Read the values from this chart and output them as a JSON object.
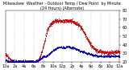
{
  "background_color": "#ffffff",
  "plot_bg_color": "#ffffff",
  "grid_color": "#aaaaaa",
  "temp_color": "#cc0000",
  "dew_color": "#0000cc",
  "ylim": [
    20,
    80
  ],
  "xlim": [
    0,
    1439
  ],
  "temp_data": [
    30,
    29,
    28,
    27,
    27,
    26,
    25,
    25,
    24,
    24,
    23,
    23,
    23,
    22,
    22,
    22,
    22,
    21,
    21,
    21,
    21,
    21,
    21,
    20,
    20,
    20,
    20,
    20,
    20,
    20,
    20,
    20,
    20,
    20,
    20,
    20,
    20,
    20,
    20,
    20,
    20,
    20,
    20,
    20,
    20,
    20,
    20,
    20,
    20,
    20,
    20,
    20,
    20,
    20,
    20,
    20,
    20,
    20,
    20,
    20,
    20,
    20,
    20,
    20,
    20,
    21,
    21,
    22,
    22,
    23,
    24,
    25,
    26,
    27,
    28,
    30,
    32,
    34,
    36,
    38,
    40,
    42,
    44,
    47,
    49,
    52,
    54,
    56,
    58,
    59,
    60,
    61,
    62,
    63,
    64,
    64,
    65,
    65,
    66,
    66,
    67,
    67,
    67,
    68,
    68,
    68,
    68,
    68,
    68,
    68,
    68,
    68,
    68,
    68,
    68,
    68,
    68,
    68,
    68,
    68,
    68,
    68,
    68,
    68,
    68,
    68,
    68,
    68,
    68,
    68,
    68,
    68,
    68,
    68,
    68,
    68,
    68,
    68,
    68,
    68,
    67,
    67,
    67,
    67,
    67,
    66,
    66,
    66,
    65,
    65,
    65,
    64,
    64,
    63,
    63,
    62,
    62,
    61,
    61,
    60,
    59,
    58,
    57,
    56,
    55,
    54,
    53,
    52,
    51,
    50,
    49,
    48,
    47,
    46,
    45,
    44,
    43,
    42,
    41,
    40,
    39,
    38,
    38,
    37,
    37,
    36,
    36,
    35,
    35,
    34,
    34,
    34,
    33,
    33,
    33,
    33,
    33,
    33,
    33,
    33,
    32,
    32,
    32,
    32,
    32,
    32,
    31,
    31,
    31,
    31,
    31,
    31,
    31,
    31,
    31,
    31,
    31,
    31,
    31,
    31,
    31,
    31,
    31,
    31,
    31,
    31,
    31,
    31,
    31,
    32,
    32,
    32,
    32,
    32,
    32,
    32,
    32,
    32,
    32,
    32
  ],
  "dew_data": [
    22,
    22,
    22,
    22,
    21,
    21,
    21,
    21,
    21,
    21,
    21,
    21,
    21,
    21,
    21,
    21,
    21,
    21,
    21,
    21,
    21,
    21,
    21,
    21,
    21,
    21,
    21,
    21,
    21,
    21,
    21,
    21,
    21,
    21,
    21,
    21,
    21,
    21,
    21,
    21,
    21,
    21,
    21,
    21,
    21,
    21,
    21,
    21,
    21,
    21,
    21,
    21,
    21,
    21,
    21,
    21,
    21,
    21,
    21,
    21,
    21,
    21,
    21,
    21,
    22,
    22,
    22,
    22,
    22,
    22,
    23,
    23,
    23,
    24,
    24,
    25,
    25,
    26,
    26,
    27,
    27,
    27,
    27,
    27,
    27,
    27,
    27,
    28,
    28,
    28,
    29,
    29,
    30,
    30,
    31,
    31,
    32,
    32,
    33,
    33,
    34,
    34,
    34,
    35,
    35,
    35,
    36,
    36,
    36,
    37,
    37,
    37,
    37,
    37,
    37,
    37,
    37,
    37,
    37,
    37,
    37,
    37,
    37,
    37,
    37,
    37,
    37,
    37,
    38,
    38,
    38,
    38,
    38,
    38,
    38,
    38,
    37,
    37,
    37,
    37,
    37,
    37,
    37,
    36,
    36,
    36,
    36,
    35,
    35,
    35,
    35,
    34,
    34,
    34,
    34,
    33,
    33,
    33,
    33,
    33,
    33,
    32,
    32,
    32,
    32,
    32,
    31,
    31,
    31,
    31,
    30,
    30,
    30,
    30,
    30,
    30,
    30,
    29,
    29,
    29,
    29,
    29,
    28,
    28,
    28,
    28,
    28,
    28,
    28,
    28,
    28,
    27,
    27,
    27,
    27,
    27,
    27,
    27,
    27,
    27,
    27,
    27,
    27,
    27,
    27,
    27,
    27,
    27,
    27,
    27,
    27,
    27,
    27,
    27,
    27,
    27,
    27,
    27,
    27,
    27,
    27,
    27,
    27,
    27,
    27,
    27,
    27,
    27,
    27,
    27,
    27,
    27,
    27,
    27,
    27,
    27,
    27,
    27,
    27,
    27
  ],
  "ytick_positions": [
    20,
    30,
    40,
    50,
    60,
    70,
    80
  ],
  "ytick_labels": [
    "20",
    "30",
    "40",
    "50",
    "60",
    "70",
    "80"
  ],
  "xtick_positions": [
    0,
    120,
    240,
    360,
    480,
    600,
    720,
    840,
    960,
    1080,
    1200,
    1320,
    1440
  ],
  "xtick_labels": [
    "12a",
    "2a",
    "4a",
    "6a",
    "8a",
    "10a",
    "12p",
    "2p",
    "4p",
    "6p",
    "8p",
    "10p",
    "12a"
  ],
  "title": "Milwaukee  Weather - Outdoor Temp / Dew Point  by Minute  (24 Hours) (Alternate)",
  "title_fontsize": 3.5,
  "tick_fontsize": 3.5,
  "marker_size": 1.2,
  "line_width": 0.5
}
